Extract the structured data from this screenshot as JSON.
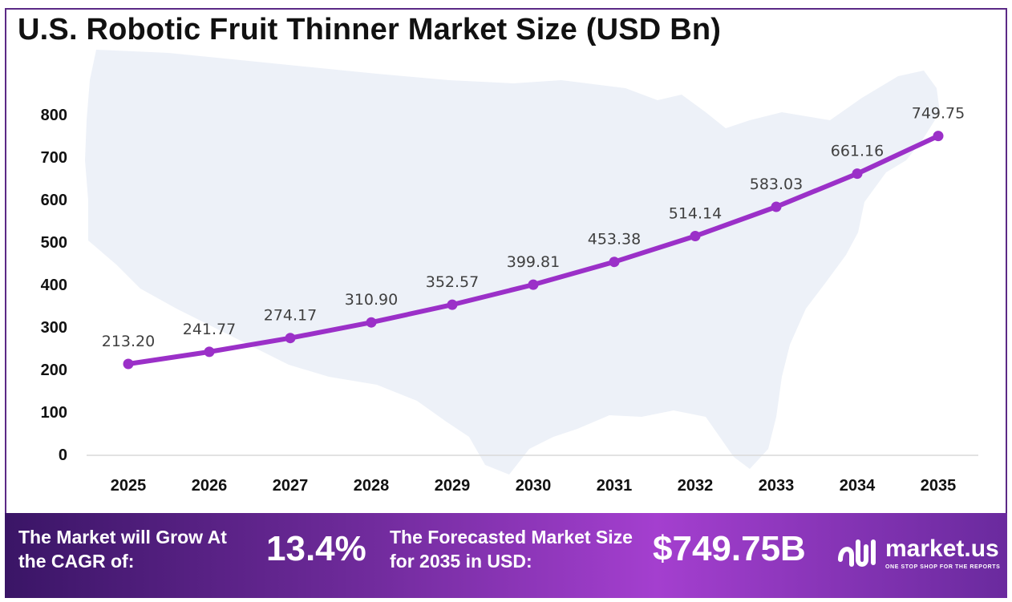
{
  "title": "U.S. Robotic Fruit Thinner Market Size (USD Bn)",
  "chart_data": {
    "type": "line",
    "title": "U.S. Robotic Fruit Thinner Market Size (USD Bn)",
    "categories": [
      "2025",
      "2026",
      "2027",
      "2028",
      "2029",
      "2030",
      "2031",
      "2032",
      "2033",
      "2034",
      "2035"
    ],
    "series": [
      {
        "values": [
          213.2,
          241.77,
          274.17,
          310.9,
          352.57,
          399.81,
          453.38,
          514.14,
          583.03,
          661.16,
          749.75
        ],
        "labels": [
          "213.20",
          "241.77",
          "274.17",
          "310.90",
          "352.57",
          "399.81",
          "453.38",
          "514.14",
          "583.03",
          "661.16",
          "749.75"
        ],
        "color": "#9b30c8"
      }
    ],
    "yticks": [
      "0",
      "100",
      "200",
      "300",
      "400",
      "500",
      "600",
      "700",
      "800"
    ],
    "ylim": [
      0,
      800
    ],
    "grid": false,
    "legend": "none",
    "background": "us-map-silhouette",
    "map_color": "#edf1f8"
  },
  "footer": {
    "cagr_label": "The Market will Grow At the CAGR of:",
    "cagr_value": "13.4%",
    "forecast_label": "The Forecasted Market Size for 2035 in USD:",
    "forecast_value": "$749.75B",
    "brand_name": "market.us",
    "brand_tagline": "ONE STOP SHOP FOR THE REPORTS",
    "brand_icon": "market-us-logo-icon"
  }
}
